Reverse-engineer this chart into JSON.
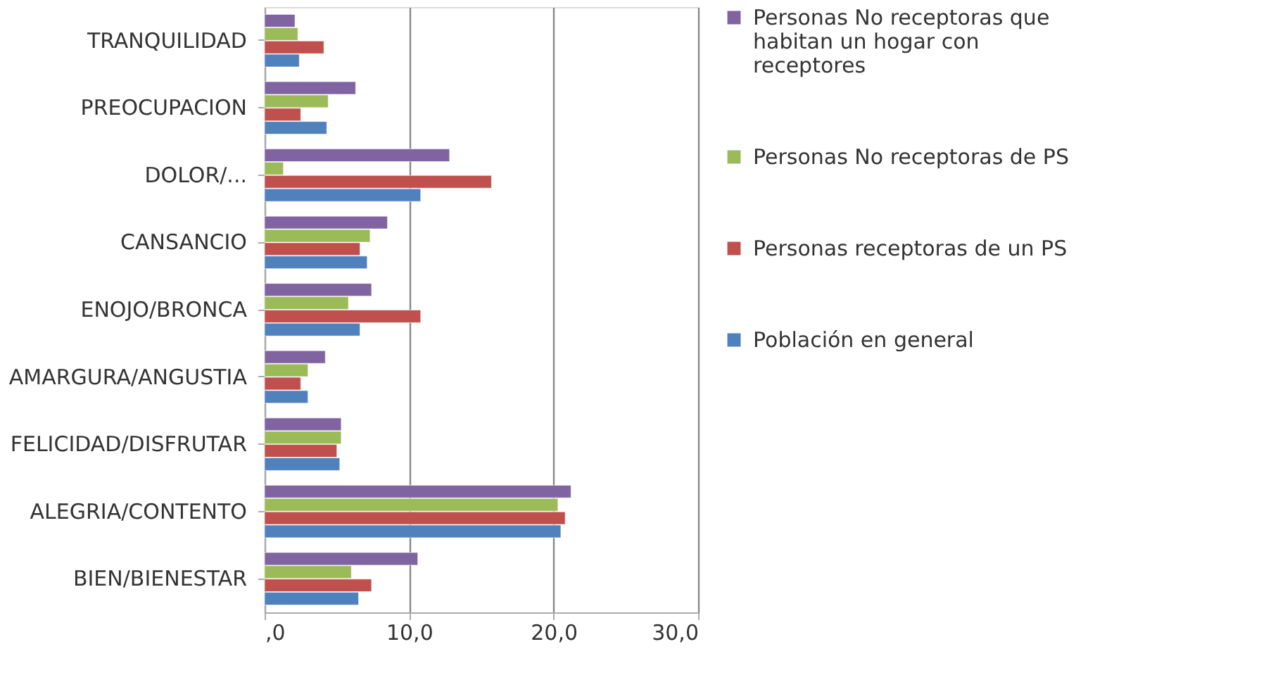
{
  "chart_data": {
    "type": "bar",
    "orientation": "horizontal",
    "categories": [
      "TRANQUILIDAD",
      "PREOCUPACION",
      "DOLOR/...",
      "CANSANCIO",
      "ENOJO/BRONCA",
      "AMARGURA/ANGUSTIA",
      "FELICIDAD/DISFRUTAR",
      "ALEGRIA/CONTENTO",
      "BIEN/BIENESTAR"
    ],
    "series": [
      {
        "name": "Personas No receptoras que habitan un hogar con receptores",
        "color": "#8064a2",
        "values": [
          2.1,
          6.3,
          12.8,
          8.5,
          7.4,
          4.2,
          5.3,
          21.2,
          10.6
        ]
      },
      {
        "name": "Personas No receptoras de PS",
        "color": "#9bbb59",
        "values": [
          2.3,
          4.4,
          1.3,
          7.3,
          5.8,
          3.0,
          5.3,
          20.3,
          6.0
        ]
      },
      {
        "name": "Personas receptoras de un PS",
        "color": "#c0504d",
        "values": [
          4.1,
          2.5,
          15.7,
          6.6,
          10.8,
          2.5,
          5.0,
          20.8,
          7.4
        ]
      },
      {
        "name": "Población en general",
        "color": "#4f81bd",
        "values": [
          2.4,
          4.3,
          10.8,
          7.1,
          6.6,
          3.0,
          5.2,
          20.5,
          6.5
        ]
      }
    ],
    "xlim": [
      0,
      30
    ],
    "xticks": [
      {
        "value": 0,
        "label": ",0"
      },
      {
        "value": 10,
        "label": "10,0"
      },
      {
        "value": 20,
        "label": "20,0"
      },
      {
        "value": 30,
        "label": "30,0"
      }
    ],
    "grid": "x",
    "legend": "right"
  }
}
